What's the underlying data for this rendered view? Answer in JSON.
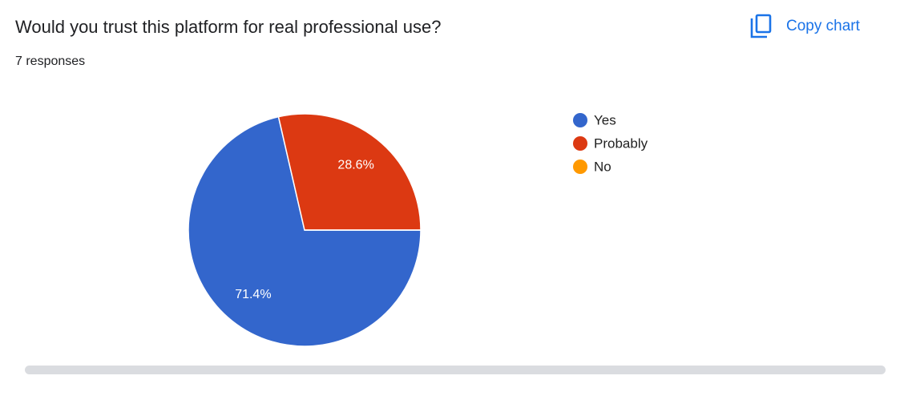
{
  "chart_data": {
    "type": "pie",
    "title": "Would you trust this platform for real professional use?",
    "subtitle": "7 responses",
    "categories": [
      "Yes",
      "Probably",
      "No"
    ],
    "values": [
      71.4,
      28.6,
      0
    ],
    "value_labels": [
      "71.4%",
      "28.6%",
      null
    ],
    "colors": [
      "#3366cc",
      "#dc3912",
      "#ff9900"
    ],
    "legend": "right"
  },
  "copy_button": "Copy chart"
}
